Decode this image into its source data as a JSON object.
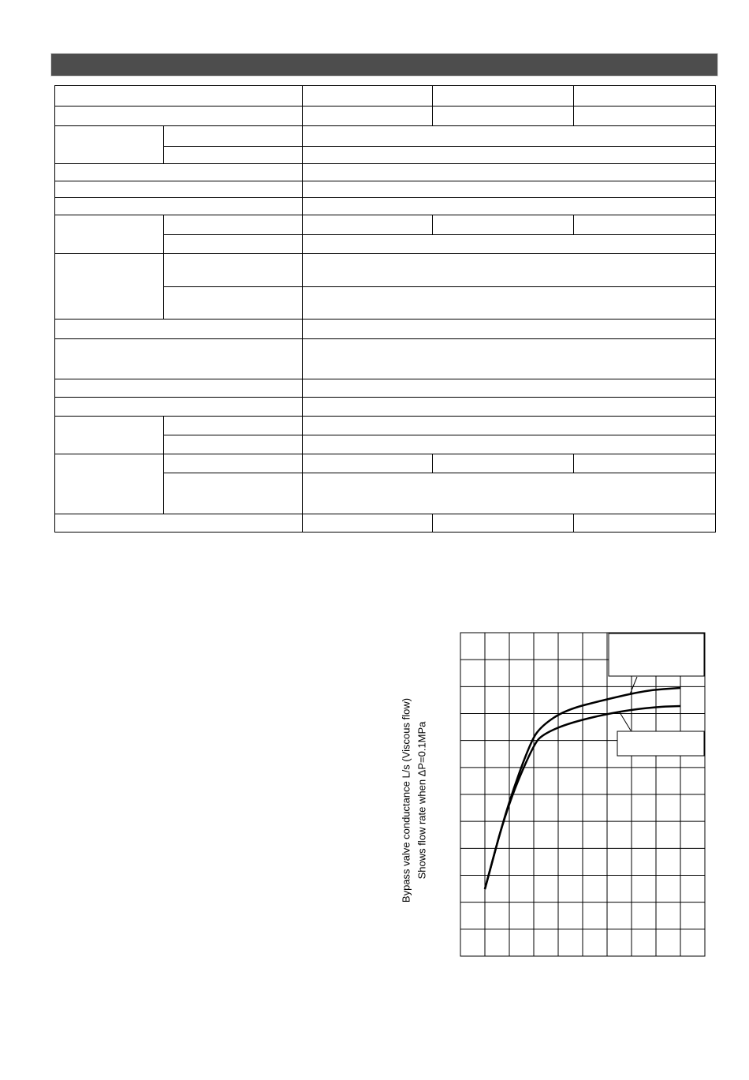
{
  "header": {
    "title": ""
  },
  "chart_data": {
    "type": "line",
    "title": "",
    "ylabel": "Bypass valve conductance L/s (Viscous flow)",
    "ylabel_sub": "Shows flow rate when ΔP=0.1MPa",
    "xlabel": "",
    "grid": true,
    "series_count": 2,
    "legend": "callout boxes top-right (blank)"
  }
}
